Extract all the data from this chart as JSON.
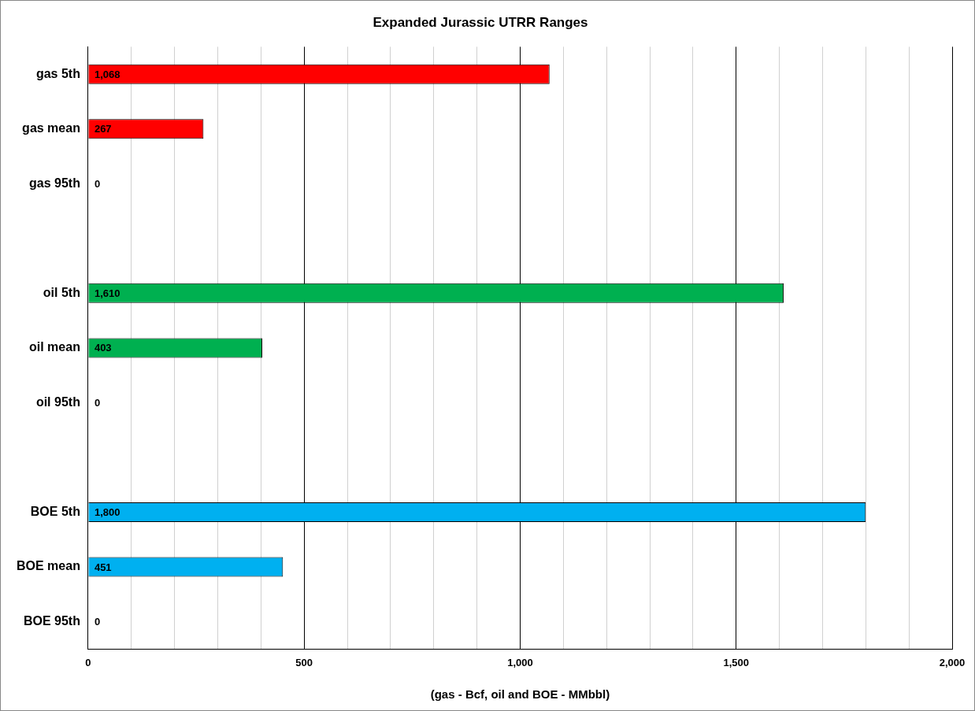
{
  "chart_data": {
    "type": "bar",
    "orientation": "horizontal",
    "title": "Expanded Jurassic UTRR Ranges",
    "xlabel": "(gas - Bcf, oil and BOE - MMbbl)",
    "categories": [
      "gas 5th",
      "gas mean",
      "gas 95th",
      null,
      "oil 5th",
      "oil mean",
      "oil 95th",
      null,
      "BOE 5th",
      "BOE mean",
      "BOE 95th"
    ],
    "values": [
      1068,
      267,
      0,
      null,
      1610,
      403,
      0,
      null,
      1800,
      451,
      0
    ],
    "colors": [
      "#ff0000",
      "#ff0000",
      "#ff0000",
      null,
      "#00b050",
      "#00b050",
      "#00b050",
      null,
      "#00b0f0",
      "#00b0f0",
      "#00b0f0"
    ],
    "xlim": [
      0,
      2000
    ],
    "xticks": [
      0,
      {
        "value": 100,
        "label": null
      },
      {
        "value": 200,
        "label": null
      },
      {
        "value": 300,
        "label": null
      },
      {
        "value": 400,
        "label": null
      },
      500,
      {
        "value": 600,
        "label": null
      },
      {
        "value": 700,
        "label": null
      },
      {
        "value": 800,
        "label": null
      },
      {
        "value": 900,
        "label": null
      },
      {
        "value": 1000,
        "label": "1,000"
      },
      {
        "value": 1100,
        "label": null
      },
      {
        "value": 1200,
        "label": null
      },
      {
        "value": 1300,
        "label": null
      },
      {
        "value": 1400,
        "label": null
      },
      {
        "value": 1500,
        "label": "1,500"
      },
      {
        "value": 1600,
        "label": null
      },
      {
        "value": 1700,
        "label": null
      },
      {
        "value": 1800,
        "label": null
      },
      {
        "value": 1900,
        "label": null
      },
      {
        "value": 2000,
        "label": "2,000"
      }
    ],
    "value_labels": [
      "1,068",
      "267",
      "0",
      null,
      "1,610",
      "403",
      "0",
      null,
      "1,800",
      "451",
      "0"
    ],
    "grid": "x",
    "legend": false
  }
}
